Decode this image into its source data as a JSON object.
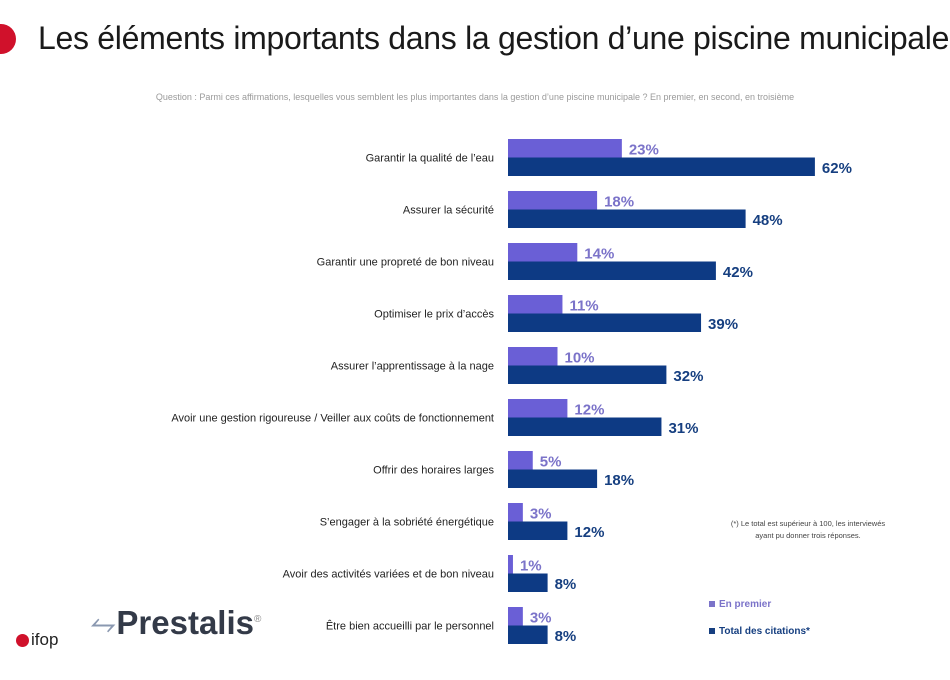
{
  "header": {
    "title": "Les éléments importants dans la gestion d’une piscine municipale",
    "question": "Question : Parmi ces affirmations, lesquelles vous semblent les plus importantes dans la gestion d’une piscine municipale ? En premier, en second, en troisième"
  },
  "chart_data": {
    "type": "bar",
    "orientation": "horizontal",
    "categories": [
      "Garantir la qualité de l’eau",
      "Assurer la sécurité",
      "Garantir une propreté de bon niveau",
      "Optimiser le prix d’accès",
      "Assurer l’apprentissage à la nage",
      "Avoir une gestion rigoureuse / Veiller aux coûts de fonctionnement",
      "Offrir des horaires larges",
      "S’engager à la sobriété énergétique",
      "Avoir des activités variées et de bon niveau",
      "Être bien accueilli par le personnel"
    ],
    "series": [
      {
        "name": "En premier",
        "color": "#6a5fd6",
        "label_color": "#7b73c9",
        "values": [
          23,
          18,
          14,
          11,
          10,
          12,
          5,
          3,
          1,
          3
        ]
      },
      {
        "name": "Total des citations*",
        "color": "#0d3a84",
        "label_color": "#163f80",
        "values": [
          62,
          48,
          42,
          39,
          32,
          31,
          18,
          12,
          8,
          8
        ]
      }
    ],
    "value_suffix": "%",
    "xlim": [
      0,
      100
    ],
    "legend": "bottom-right",
    "grid": false
  },
  "footnote": "(*) Le total est supérieur à 100, les interviewés ayant pu donner trois réponses.",
  "logos": {
    "ifop": "ifop",
    "prestalis": "Prestalis",
    "prestalis_mark": "®"
  }
}
